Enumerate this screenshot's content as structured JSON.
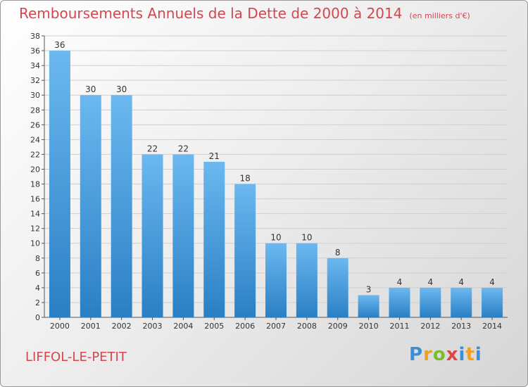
{
  "title": "Remboursements Annuels de la Dette de 2000 à 2014",
  "unit": "(en milliers d'€)",
  "city": "LIFFOL-LE-PETIT",
  "brand": {
    "logo_text": "Proxiti"
  },
  "colors": {
    "title": "#d2474f",
    "bar_light": "#66b3ee",
    "bar_dark": "#2a7fc4",
    "grid": "#cfcfcf"
  },
  "chart_data": {
    "type": "bar",
    "title": "Remboursements Annuels de la Dette de 2000 à 2014",
    "subtitle": "(en milliers d'€)",
    "xlabel": "",
    "ylabel": "",
    "categories": [
      "2000",
      "2001",
      "2002",
      "2003",
      "2004",
      "2005",
      "2006",
      "2007",
      "2008",
      "2009",
      "2010",
      "2011",
      "2012",
      "2013",
      "2014"
    ],
    "values": [
      36,
      30,
      30,
      22,
      22,
      21,
      18,
      10,
      10,
      8,
      3,
      4,
      4,
      4,
      4
    ],
    "ylim": [
      0,
      38
    ],
    "yticks": [
      0,
      2,
      4,
      6,
      8,
      10,
      12,
      14,
      16,
      18,
      20,
      22,
      24,
      26,
      28,
      30,
      32,
      34,
      36,
      38
    ],
    "grid": true,
    "data_labels": true
  }
}
